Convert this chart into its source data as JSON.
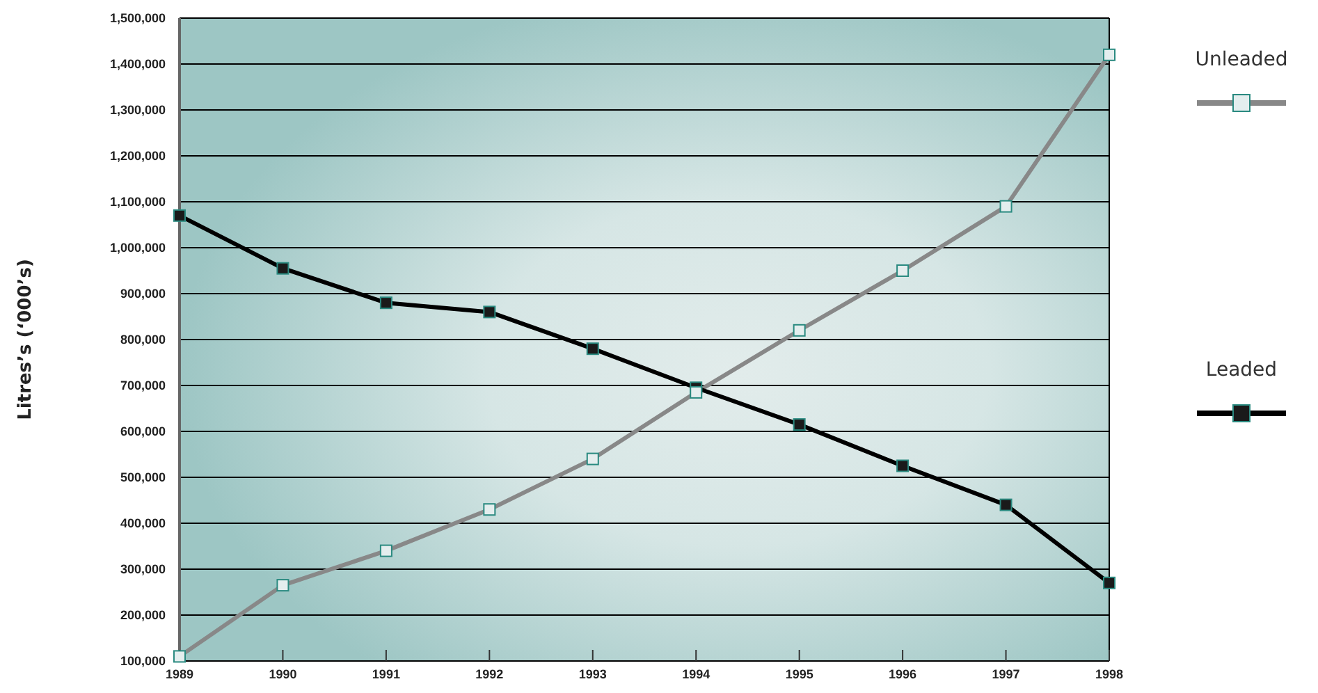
{
  "chart_data": {
    "type": "line",
    "ylabel": "Litres’s (‘000’s)",
    "x": [
      1989,
      1990,
      1991,
      1992,
      1993,
      1994,
      1995,
      1996,
      1997,
      1998
    ],
    "series": [
      {
        "name": "Unleaded",
        "color": "#888888",
        "values": [
          110000,
          265000,
          340000,
          430000,
          540000,
          685000,
          820000,
          950000,
          1090000,
          1420000
        ]
      },
      {
        "name": "Leaded",
        "color": "#000000",
        "values": [
          1070000,
          955000,
          880000,
          860000,
          780000,
          695000,
          615000,
          525000,
          440000,
          270000
        ]
      }
    ],
    "xlim": [
      1989,
      1998
    ],
    "xticks": [
      1989,
      1990,
      1991,
      1992,
      1993,
      1994,
      1995,
      1996,
      1997,
      1998
    ],
    "ylim": [
      100000,
      1500000
    ],
    "yticks": [
      {
        "value": 100000,
        "label": "100,000"
      },
      {
        "value": 200000,
        "label": "200,000"
      },
      {
        "value": 300000,
        "label": "300,000"
      },
      {
        "value": 400000,
        "label": "400,000"
      },
      {
        "value": 500000,
        "label": "500,000"
      },
      {
        "value": 600000,
        "label": "600,000"
      },
      {
        "value": 700000,
        "label": "700,000"
      },
      {
        "value": 800000,
        "label": "800,000"
      },
      {
        "value": 900000,
        "label": "900,000"
      },
      {
        "value": 1000000,
        "label": "1,000,000"
      },
      {
        "value": 1100000,
        "label": "1,100,000"
      },
      {
        "value": 1200000,
        "label": "1,200,000"
      },
      {
        "value": 1300000,
        "label": "1,300,000"
      },
      {
        "value": 1400000,
        "label": "1,400,000"
      },
      {
        "value": 1500000,
        "label": "1,500,000"
      }
    ],
    "grid": "y",
    "legend": "right",
    "marker": "square",
    "line_style": "solid"
  }
}
